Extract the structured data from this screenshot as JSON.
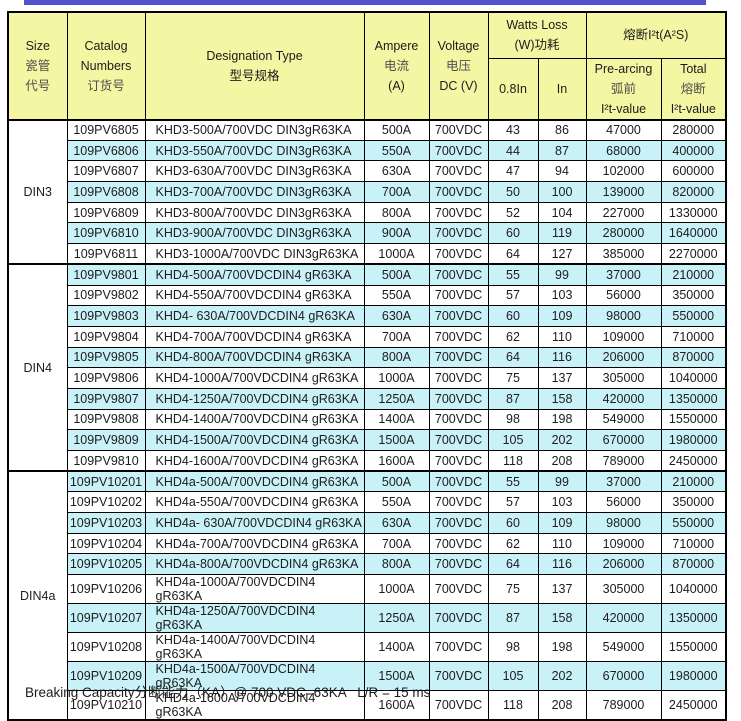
{
  "page": {
    "footer": "Breaking Capacity分断能力（KA）@ 700 VDC=63KA   L/R = 15 ms"
  },
  "table": {
    "headers": {
      "size": {
        "l1": "Size",
        "l2": "瓷管",
        "l3": "代号"
      },
      "catalog": {
        "l1": "Catalog",
        "l2": "Numbers",
        "l3": "订货号"
      },
      "designation": {
        "l1": "Designation Type",
        "l2": "型号规格"
      },
      "ampere": {
        "l1": "Ampere",
        "l2": "电流",
        "l3": "(A)"
      },
      "voltage": {
        "l1": "Voltage",
        "l2": "电压",
        "l3": "DC (V)"
      },
      "watts_loss": {
        "l1": "Watts Loss",
        "l2": "(W)功耗"
      },
      "i2t": {
        "l1": "熔断I²t(A²S)"
      },
      "sub_08in": "0.8In",
      "sub_in": "In",
      "prearcing": {
        "l1": "Pre-arcing",
        "l2": "弧前",
        "l3": "I²t-value"
      },
      "total": {
        "l1": "Total",
        "l2": "熔断",
        "l3": "I²t-value"
      }
    },
    "groups": [
      {
        "size": "DIN3",
        "rows": [
          [
            "109PV6805",
            "KHD3-500A/700VDC DIN3gR63KA",
            "500A",
            "700VDC",
            "43",
            "86",
            "47000",
            "280000"
          ],
          [
            "109PV6806",
            "KHD3-550A/700VDC DIN3gR63KA",
            "550A",
            "700VDC",
            "44",
            "87",
            "68000",
            "400000"
          ],
          [
            "109PV6807",
            "KHD3-630A/700VDC DIN3gR63KA",
            "630A",
            "700VDC",
            "47",
            "94",
            "102000",
            "600000"
          ],
          [
            "109PV6808",
            "KHD3-700A/700VDC DIN3gR63KA",
            "700A",
            "700VDC",
            "50",
            "100",
            "139000",
            "820000"
          ],
          [
            "109PV6809",
            "KHD3-800A/700VDC DIN3gR63KA",
            "800A",
            "700VDC",
            "52",
            "104",
            "227000",
            "1330000"
          ],
          [
            "109PV6810",
            "KHD3-900A/700VDC DIN3gR63KA",
            "900A",
            "700VDC",
            "60",
            "119",
            "280000",
            "1640000"
          ],
          [
            "109PV6811",
            "KHD3-1000A/700VDC DIN3gR63KA",
            "1000A",
            "700VDC",
            "64",
            "127",
            "385000",
            "2270000"
          ]
        ]
      },
      {
        "size": "DIN4",
        "rows": [
          [
            "109PV9801",
            "KHD4-500A/700VDCDIN4 gR63KA",
            "500A",
            "700VDC",
            "55",
            "99",
            "37000",
            "210000"
          ],
          [
            "109PV9802",
            "KHD4-550A/700VDCDIN4 gR63KA",
            "550A",
            "700VDC",
            "57",
            "103",
            "56000",
            "350000"
          ],
          [
            "109PV9803",
            "KHD4- 630A/700VDCDIN4 gR63KA",
            "630A",
            "700VDC",
            "60",
            "109",
            "98000",
            "550000"
          ],
          [
            "109PV9804",
            "KHD4-700A/700VDCDIN4 gR63KA",
            "700A",
            "700VDC",
            "62",
            "110",
            "109000",
            "710000"
          ],
          [
            "109PV9805",
            "KHD4-800A/700VDCDIN4 gR63KA",
            "800A",
            "700VDC",
            "64",
            "116",
            "206000",
            "870000"
          ],
          [
            "109PV9806",
            "KHD4-1000A/700VDCDIN4 gR63KA",
            "1000A",
            "700VDC",
            "75",
            "137",
            "305000",
            "1040000"
          ],
          [
            "109PV9807",
            "KHD4-1250A/700VDCDIN4 gR63KA",
            "1250A",
            "700VDC",
            "87",
            "158",
            "420000",
            "1350000"
          ],
          [
            "109PV9808",
            "KHD4-1400A/700VDCDIN4 gR63KA",
            "1400A",
            "700VDC",
            "98",
            "198",
            "549000",
            "1550000"
          ],
          [
            "109PV9809",
            "KHD4-1500A/700VDCDIN4 gR63KA",
            "1500A",
            "700VDC",
            "105",
            "202",
            "670000",
            "1980000"
          ],
          [
            "109PV9810",
            "KHD4-1600A/700VDCDIN4 gR63KA",
            "1600A",
            "700VDC",
            "118",
            "208",
            "789000",
            "2450000"
          ]
        ]
      },
      {
        "size": "DIN4a",
        "rows": [
          [
            "109PV10201",
            "KHD4a-500A/700VDCDIN4 gR63KA",
            "500A",
            "700VDC",
            "55",
            "99",
            "37000",
            "210000"
          ],
          [
            "109PV10202",
            "KHD4a-550A/700VDCDIN4 gR63KA",
            "550A",
            "700VDC",
            "57",
            "103",
            "56000",
            "350000"
          ],
          [
            "109PV10203",
            "KHD4a- 630A/700VDCDIN4 gR63KA",
            "630A",
            "700VDC",
            "60",
            "109",
            "98000",
            "550000"
          ],
          [
            "109PV10204",
            "KHD4a-700A/700VDCDIN4 gR63KA",
            "700A",
            "700VDC",
            "62",
            "110",
            "109000",
            "710000"
          ],
          [
            "109PV10205",
            "KHD4a-800A/700VDCDIN4 gR63KA",
            "800A",
            "700VDC",
            "64",
            "116",
            "206000",
            "870000"
          ],
          [
            "109PV10206",
            "KHD4a-1000A/700VDCDIN4 gR63KA",
            "1000A",
            "700VDC",
            "75",
            "137",
            "305000",
            "1040000"
          ],
          [
            "109PV10207",
            "KHD4a-1250A/700VDCDIN4 gR63KA",
            "1250A",
            "700VDC",
            "87",
            "158",
            "420000",
            "1350000"
          ],
          [
            "109PV10208",
            "KHD4a-1400A/700VDCDIN4 gR63KA",
            "1400A",
            "700VDC",
            "98",
            "198",
            "549000",
            "1550000"
          ],
          [
            "109PV10209",
            "KHD4a-1500A/700VDCDIN4 gR63KA",
            "1500A",
            "700VDC",
            "105",
            "202",
            "670000",
            "1980000"
          ],
          [
            "109PV10210",
            "KHD4a-1600A/700VDCDIN4 gR63KA",
            "1600A",
            "700VDC",
            "118",
            "208",
            "789000",
            "2450000"
          ]
        ]
      }
    ],
    "colors": {
      "header_bg": "#f5f6a3",
      "stripe_bg": "#c9f2f8",
      "border": "#000000",
      "top_rule": "#5453cd"
    }
  }
}
